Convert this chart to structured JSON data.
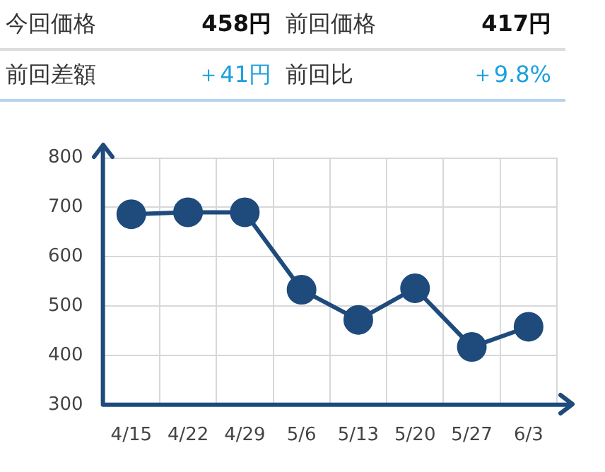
{
  "chart_data": {
    "type": "line",
    "annotations": [
      "今回価格",
      "458円",
      "前回価格",
      "417円",
      "前回差額",
      "＋41円",
      "前回比",
      "＋9.8%"
    ],
    "categories": [
      "4/15",
      "4/22",
      "4/29",
      "5/6",
      "5/13",
      "5/20",
      "5/27",
      "6/3"
    ],
    "series": [
      {
        "color": "#1e4a7c",
        "values": [
          686,
          690,
          690,
          533,
          472,
          536,
          417,
          458
        ]
      }
    ],
    "ylim": [
      300,
      800
    ],
    "yticks": [
      300,
      400,
      500,
      600,
      700,
      800
    ],
    "grid": true,
    "legend": false,
    "marker": "circle",
    "line_style": "solid"
  }
}
